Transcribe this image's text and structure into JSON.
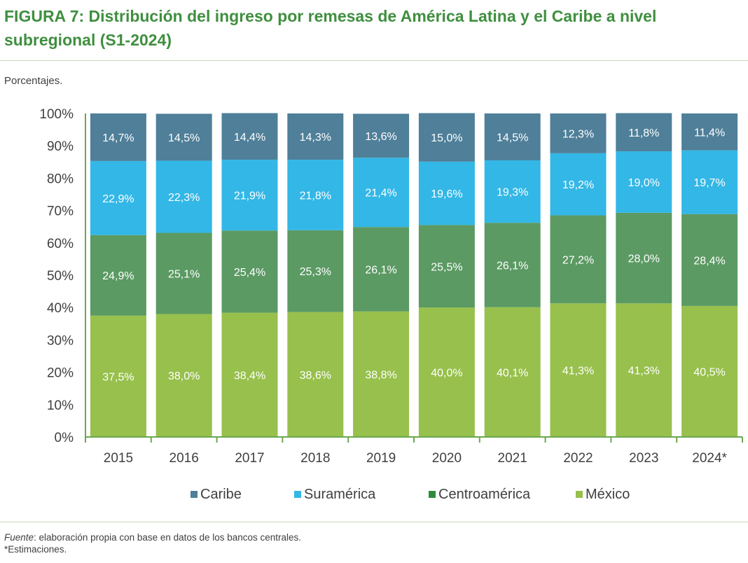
{
  "header": {
    "title": "FIGURA 7: Distribución del ingreso por remesas de América Latina y el Caribe a nivel subregional (S1-2024)",
    "subtitle": "Porcentajes."
  },
  "footer": {
    "source_label": "Fuente",
    "source_text": ": elaboración propia con base en datos de los bancos centrales.",
    "note": "*Estimaciones."
  },
  "chart_data": {
    "type": "bar",
    "stacked": true,
    "percent_stacked": true,
    "title": "FIGURA 7: Distribución del ingreso por remesas de América Latina y el Caribe a nivel subregional (S1-2024)",
    "ylabel": "Porcentajes.",
    "ylim": [
      0,
      100
    ],
    "y_ticks": [
      "0%",
      "10%",
      "20%",
      "30%",
      "40%",
      "50%",
      "60%",
      "70%",
      "80%",
      "90%",
      "100%"
    ],
    "categories": [
      "2015",
      "2016",
      "2017",
      "2018",
      "2019",
      "2020",
      "2021",
      "2022",
      "2023",
      "2024*"
    ],
    "series": [
      {
        "name": "México",
        "color": "#97c04c",
        "values": [
          37.5,
          38.0,
          38.4,
          38.6,
          38.8,
          40.0,
          40.1,
          41.3,
          41.3,
          40.5
        ],
        "labels": [
          "37,5%",
          "38,0%",
          "38,4%",
          "38,6%",
          "38,8%",
          "40,0%",
          "40,1%",
          "41,3%",
          "41,3%",
          "40,5%"
        ]
      },
      {
        "name": "Centroamérica",
        "color": "#5b9a63",
        "values": [
          24.9,
          25.1,
          25.4,
          25.3,
          26.1,
          25.5,
          26.1,
          27.2,
          28.0,
          28.4
        ],
        "labels": [
          "24,9%",
          "25,1%",
          "25,4%",
          "25,3%",
          "26,1%",
          "25,5%",
          "26,1%",
          "27,2%",
          "28,0%",
          "28,4%"
        ]
      },
      {
        "name": "Suramérica",
        "color": "#33b7e6",
        "values": [
          22.9,
          22.3,
          21.9,
          21.8,
          21.4,
          19.6,
          19.3,
          19.2,
          19.0,
          19.7
        ],
        "labels": [
          "22,9%",
          "22,3%",
          "21,9%",
          "21,8%",
          "21,4%",
          "19,6%",
          "19,3%",
          "19,2%",
          "19,0%",
          "19,7%"
        ]
      },
      {
        "name": "Caribe",
        "color": "#4f7f99",
        "values": [
          14.7,
          14.5,
          14.4,
          14.3,
          13.6,
          15.0,
          14.5,
          12.3,
          11.8,
          11.4
        ],
        "labels": [
          "14,7%",
          "14,5%",
          "14,4%",
          "14,3%",
          "13,6%",
          "15,0%",
          "14,5%",
          "12,3%",
          "11,8%",
          "11,4%"
        ]
      }
    ],
    "legend": {
      "position": "bottom",
      "order": [
        "Caribe",
        "Suramérica",
        "Centroamérica",
        "México"
      ],
      "colors": [
        "#4f7f99",
        "#33b7e6",
        "#2e8b3e",
        "#97c04c"
      ]
    }
  }
}
